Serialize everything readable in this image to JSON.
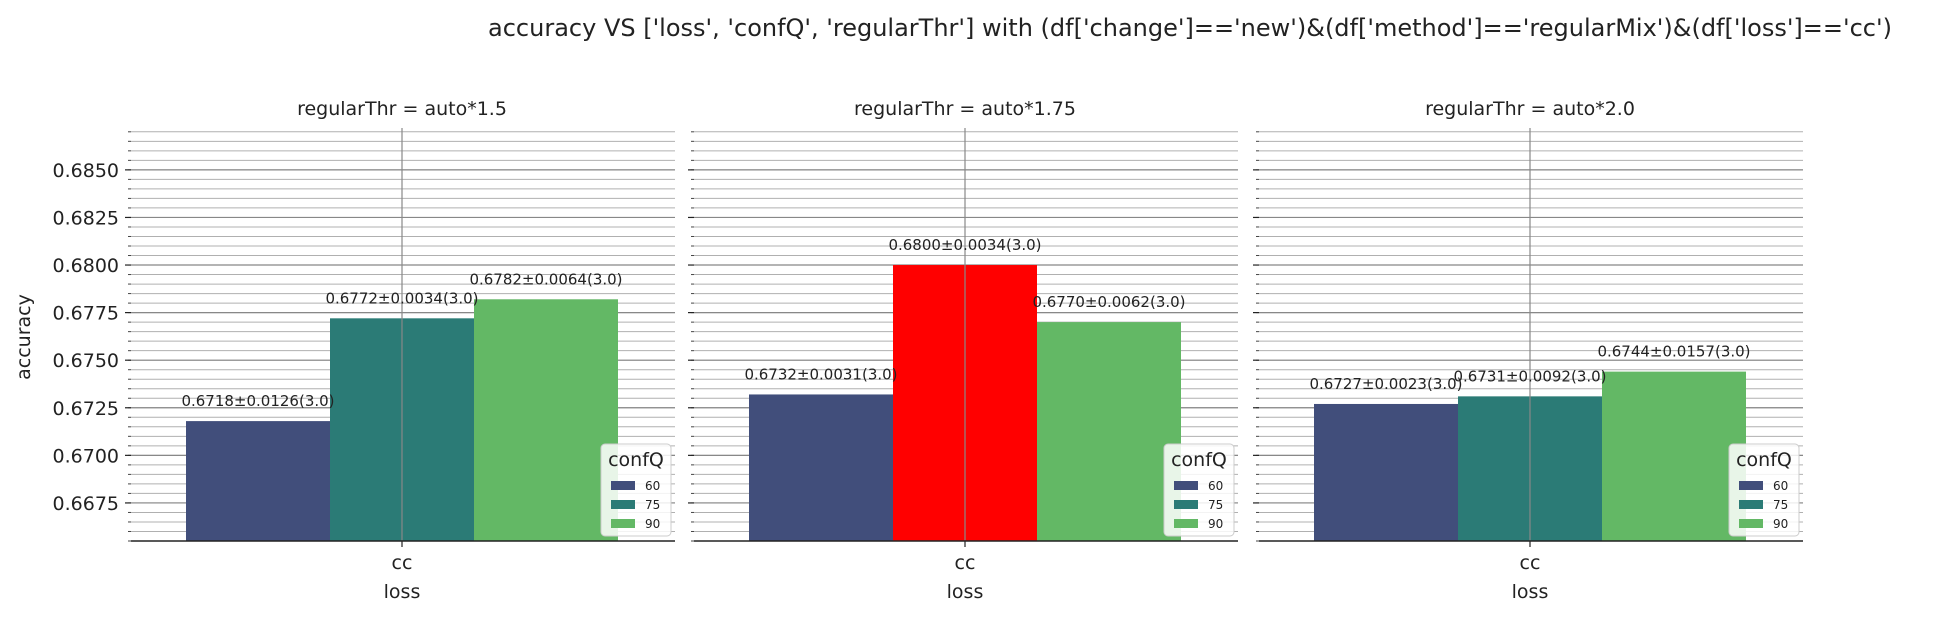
{
  "title": "accuracy VS ['loss', 'confQ', 'regularThr'] with (df['change']=='new')&(df['method']=='regularMix')&(df['loss']=='cc')",
  "chart_data": {
    "type": "bar",
    "ylabel": "accuracy",
    "xlabel": "loss",
    "ylim": [
      0.6655,
      0.6872
    ],
    "yticks": [
      0.6675,
      0.67,
      0.6725,
      0.675,
      0.6775,
      0.68,
      0.6825,
      0.685
    ],
    "ytick_labels": [
      "0.6675",
      "0.6700",
      "0.6725",
      "0.6750",
      "0.6775",
      "0.6800",
      "0.6825",
      "0.6850"
    ],
    "grid": true,
    "legend": {
      "title": "confQ",
      "placement": "lower-right",
      "entries": [
        {
          "label": "60",
          "color": "#414e7b"
        },
        {
          "label": "75",
          "color": "#2b7b76"
        },
        {
          "label": "90",
          "color": "#63b865"
        }
      ]
    },
    "panels": [
      {
        "title": "regularThr = auto*1.5",
        "category": "cc",
        "bars": [
          {
            "confQ": "60",
            "value": 0.6718,
            "label": "0.6718±0.0126(3.0)",
            "color": "#414e7b"
          },
          {
            "confQ": "75",
            "value": 0.6772,
            "label": "0.6772±0.0034(3.0)",
            "color": "#2b7b76"
          },
          {
            "confQ": "90",
            "value": 0.6782,
            "label": "0.6782±0.0064(3.0)",
            "color": "#63b865"
          }
        ]
      },
      {
        "title": "regularThr = auto*1.75",
        "category": "cc",
        "bars": [
          {
            "confQ": "60",
            "value": 0.6732,
            "label": "0.6732±0.0031(3.0)",
            "color": "#414e7b"
          },
          {
            "confQ": "75",
            "value": 0.68,
            "label": "0.6800±0.0034(3.0)",
            "color": "#ff0000"
          },
          {
            "confQ": "90",
            "value": 0.677,
            "label": "0.6770±0.0062(3.0)",
            "color": "#63b865"
          }
        ]
      },
      {
        "title": "regularThr = auto*2.0",
        "category": "cc",
        "bars": [
          {
            "confQ": "60",
            "value": 0.6727,
            "label": "0.6727±0.0023(3.0)",
            "color": "#414e7b"
          },
          {
            "confQ": "75",
            "value": 0.6731,
            "label": "0.6731±0.0092(3.0)",
            "color": "#2b7b76"
          },
          {
            "confQ": "90",
            "value": 0.6744,
            "label": "0.6744±0.0157(3.0)",
            "color": "#63b865"
          }
        ]
      }
    ]
  }
}
